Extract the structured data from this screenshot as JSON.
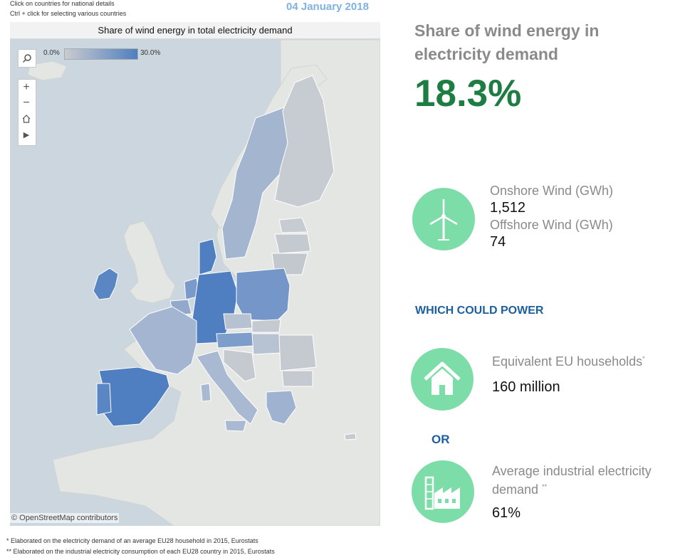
{
  "header": {
    "hint_line1": "Click on countries for national details",
    "hint_line2": "Ctrl + click  for selecting various countries",
    "date": "04 January 2018"
  },
  "map": {
    "title": "Share of wind energy in total electricity demand",
    "legend_min": "0.0%",
    "legend_max": "30.0%",
    "attribution": "© OpenStreetMap contributors",
    "colors": {
      "sea": "#ccd6de",
      "land": "#e4e6e4",
      "low": "#c9cbd0",
      "high": "#4f7fc0"
    }
  },
  "map_tools": {
    "search": "search-icon",
    "zoom_in": "+",
    "zoom_out": "−",
    "home": "home-icon",
    "play": "▶"
  },
  "summary": {
    "title": "Share of wind energy in electricity demand",
    "value": "18.3%"
  },
  "wind": {
    "onshore_label": "Onshore Wind (GWh)",
    "onshore_value": "1,512",
    "offshore_label": "Offshore Wind (GWh)",
    "offshore_value": "74",
    "icon": "wind-turbine-icon"
  },
  "power": {
    "heading": "WHICH COULD POWER",
    "households_label": "Equivalent EU households",
    "households_mark": "*",
    "households_value": "160 million",
    "or_label": "OR",
    "industrial_label_line1": "Average industrial electricity",
    "industrial_label_line2": "demand",
    "industrial_mark": "**",
    "industrial_value": "61%",
    "accent": "#7ddda8"
  },
  "footnotes": {
    "note1": "* Elaborated on the electricity demand of an average EU28 household in 2015, Eurostats",
    "note2": "** Elaborated on the industrial electricity consumption of each EU28 country in 2015, Eurostats"
  }
}
